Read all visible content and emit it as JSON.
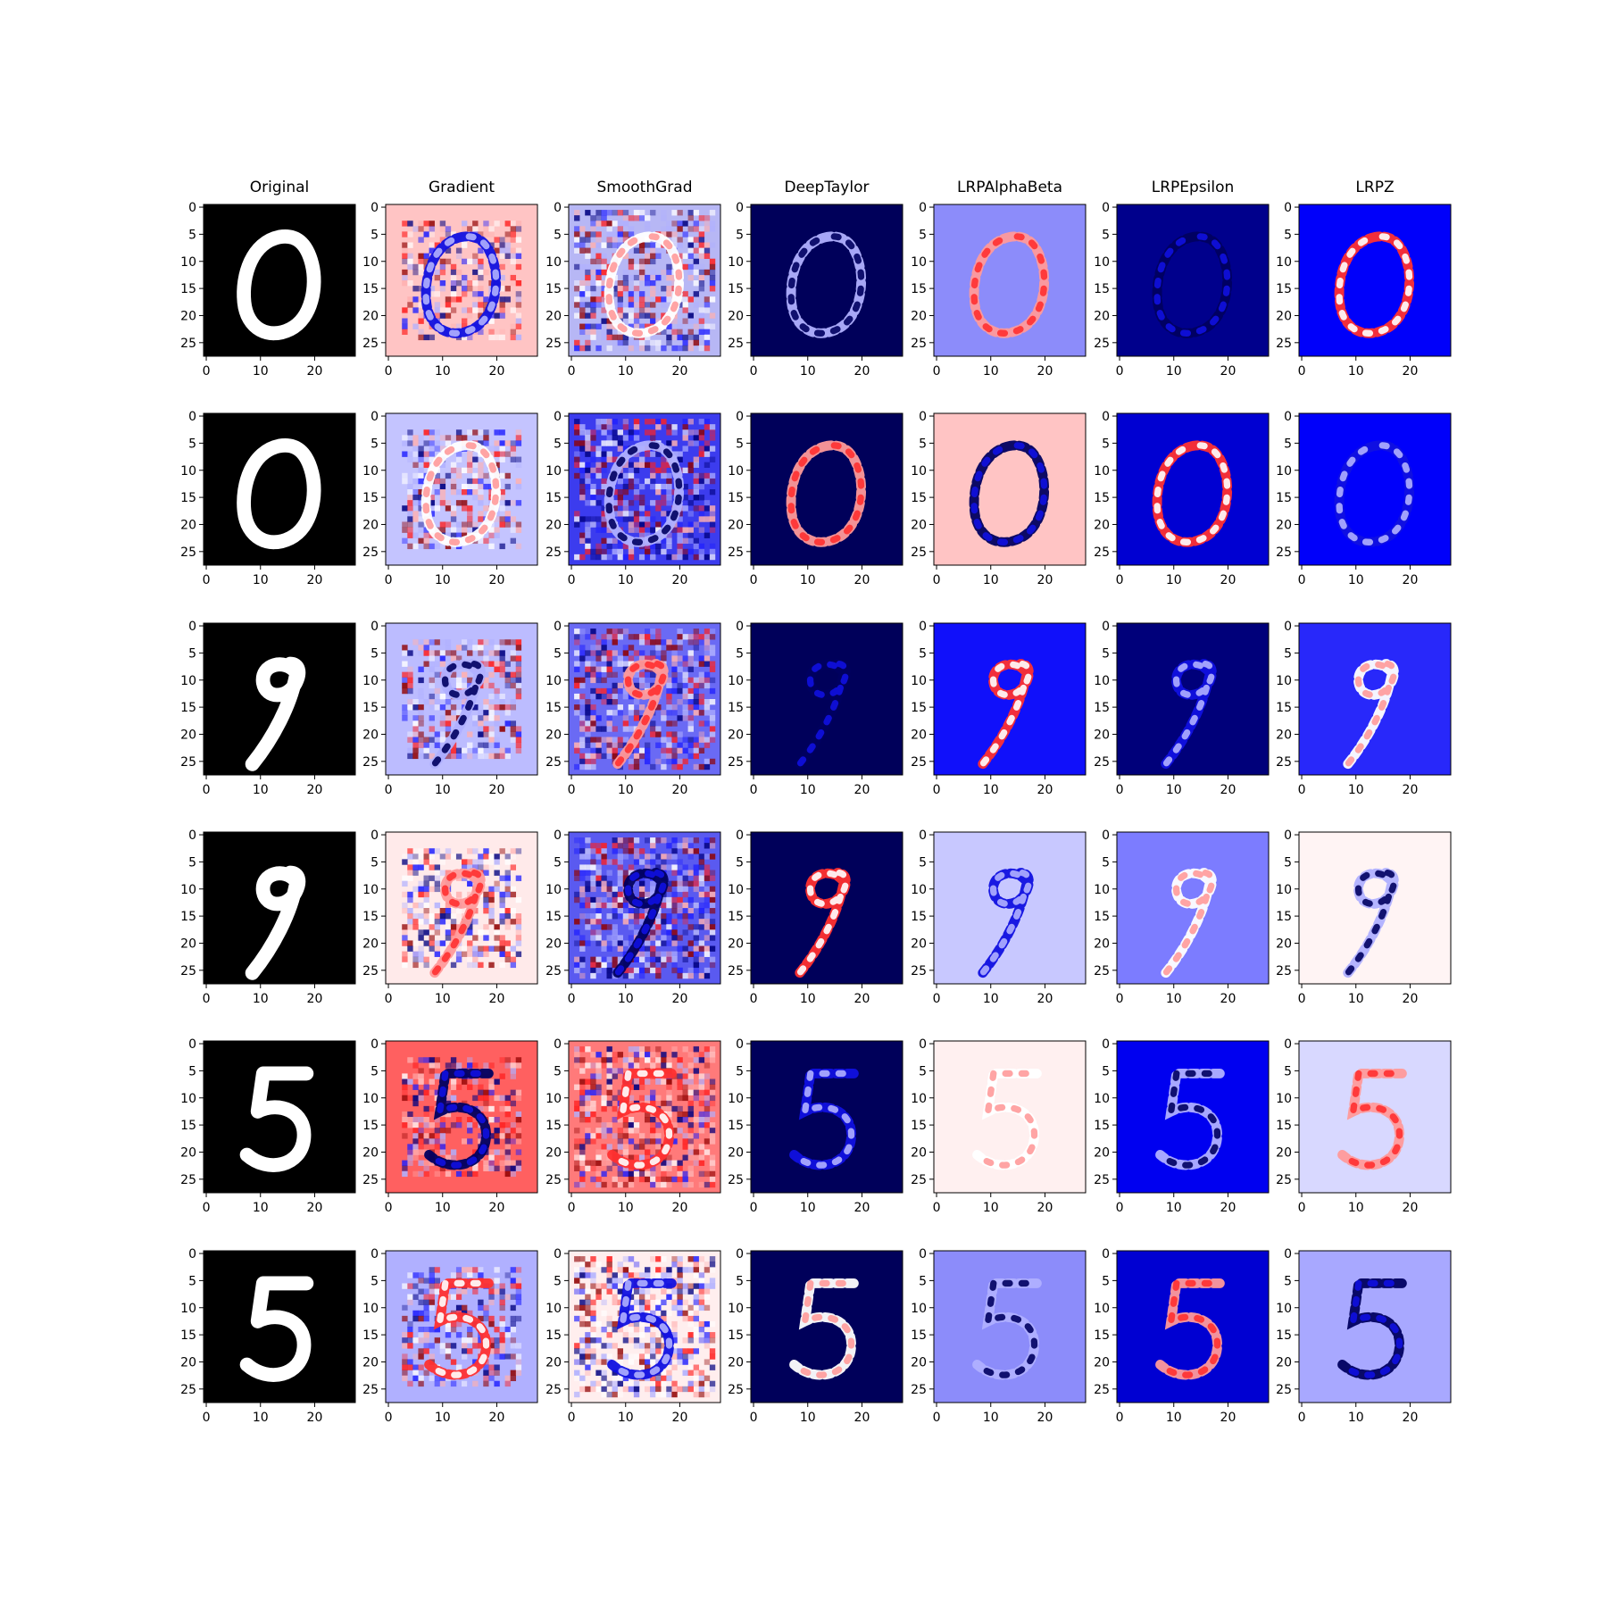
{
  "chart_data": {
    "type": "heatmap",
    "grid": {
      "rows": 6,
      "columns": 7
    },
    "column_titles": [
      "Original",
      "Gradient",
      "SmoothGrad",
      "DeepTaylor",
      "LRPAlphaBeta",
      "LRPEpsilon",
      "LRPZ"
    ],
    "image_size": [
      28,
      28
    ],
    "x_ticks": [
      0,
      10,
      20
    ],
    "y_ticks": [
      0,
      5,
      10,
      15,
      20,
      25
    ],
    "xlim": [
      -0.5,
      27.5
    ],
    "ylim": [
      27.5,
      -0.5
    ],
    "colormaps": {
      "Original": "gray",
      "relevance": "seismic"
    },
    "rows": [
      {
        "digit": 0,
        "background": [
          "#000000",
          "#ffc4c4",
          "#b7b7f5",
          "#00005a",
          "#8c8cfa",
          "#00008c",
          "#0000fa"
        ]
      },
      {
        "digit": 0,
        "background": [
          "#000000",
          "#c4c4ff",
          "#3c3cee",
          "#00005a",
          "#ffc4c4",
          "#0000d2",
          "#0000fa"
        ]
      },
      {
        "digit": 9,
        "background": [
          "#000000",
          "#bcbcff",
          "#6a6af4",
          "#00005a",
          "#1010fa",
          "#00007a",
          "#2828fa"
        ]
      },
      {
        "digit": 9,
        "background": [
          "#000000",
          "#ffeaea",
          "#5a5af0",
          "#00005a",
          "#c8c8ff",
          "#7c7cff",
          "#fff4f4"
        ]
      },
      {
        "digit": 5,
        "background": [
          "#000000",
          "#ff6060",
          "#ff7a7a",
          "#00005a",
          "#fff0f0",
          "#0000f0",
          "#d8d8ff"
        ]
      },
      {
        "digit": 5,
        "background": [
          "#000000",
          "#b0b0ff",
          "#ffeeee",
          "#00005a",
          "#8c8cfa",
          "#0000d2",
          "#a8a8ff"
        ]
      }
    ]
  }
}
